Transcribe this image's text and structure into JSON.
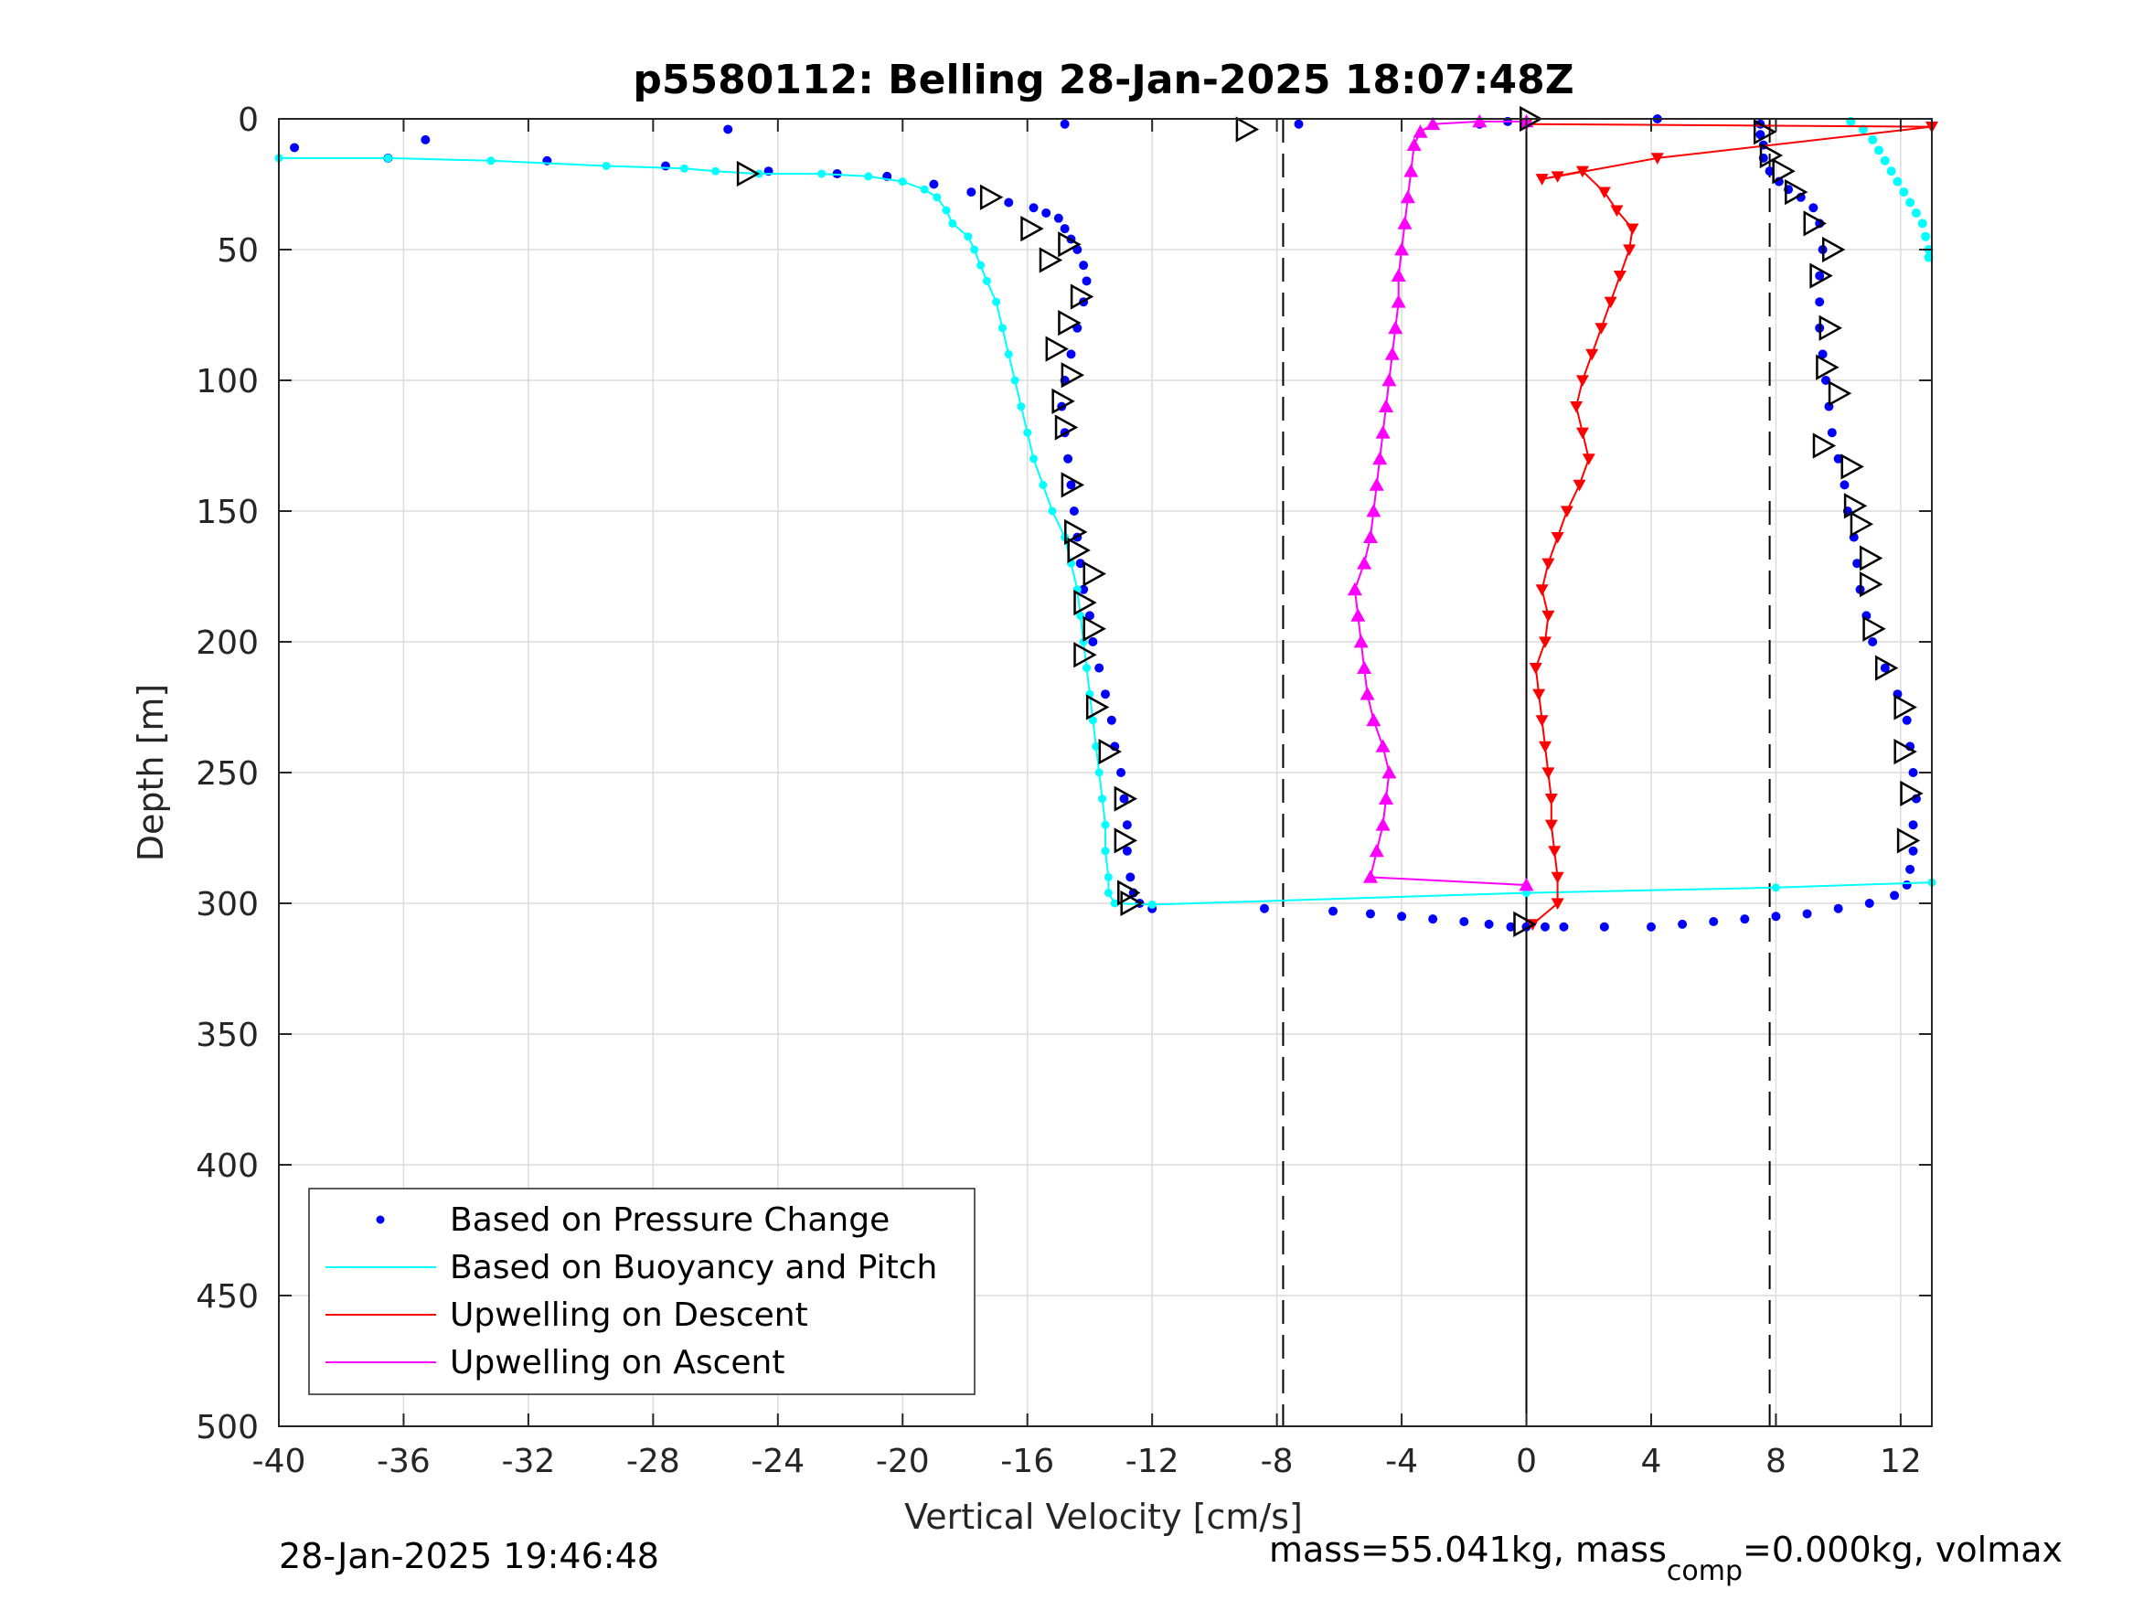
{
  "chart_data": {
    "type": "scatter",
    "title": "p5580112: Belling 28-Jan-2025 18:07:48Z",
    "xlabel": "Vertical Velocity [cm/s]",
    "ylabel": "Depth [m]",
    "xlim": [
      -40,
      13
    ],
    "ylim": [
      0,
      500
    ],
    "y_reversed": true,
    "grid": true,
    "x_ticks": [
      -40,
      -36,
      -32,
      -28,
      -24,
      -20,
      -16,
      -12,
      -8,
      -4,
      0,
      4,
      8,
      12
    ],
    "x_tick_labels": [
      "-40",
      "-36",
      "-32",
      "-28",
      "-24",
      "-20",
      "-16",
      "-12",
      "-8",
      "-4",
      "0",
      "4",
      "8",
      "12"
    ],
    "y_ticks": [
      0,
      50,
      100,
      150,
      200,
      250,
      300,
      350,
      400,
      450,
      500
    ],
    "y_tick_labels": [
      "0",
      "50",
      "100",
      "150",
      "200",
      "250",
      "300",
      "350",
      "400",
      "450",
      "500"
    ],
    "legend_position": "bottom-left",
    "reference_lines": {
      "dashed_x": [
        -7.8,
        7.8
      ],
      "solid_x": [
        0
      ]
    },
    "series": [
      {
        "name": "Based on Pressure Change",
        "style": "dots",
        "color": "#0000ff",
        "points": [
          [
            -39.5,
            11
          ],
          [
            -36.5,
            15
          ],
          [
            -35.3,
            8
          ],
          [
            -31.4,
            16
          ],
          [
            -27.6,
            18
          ],
          [
            -25.6,
            4
          ],
          [
            -24.3,
            20
          ],
          [
            -22.1,
            21
          ],
          [
            -20.5,
            22
          ],
          [
            -19.0,
            25
          ],
          [
            -17.8,
            28
          ],
          [
            -16.6,
            32
          ],
          [
            -15.8,
            34
          ],
          [
            -15.4,
            36
          ],
          [
            -15.0,
            38
          ],
          [
            -14.8,
            42
          ],
          [
            -14.6,
            46
          ],
          [
            -14.4,
            50
          ],
          [
            -14.2,
            56
          ],
          [
            -14.1,
            62
          ],
          [
            -14.2,
            70
          ],
          [
            -14.4,
            80
          ],
          [
            -14.6,
            90
          ],
          [
            -14.8,
            100
          ],
          [
            -14.9,
            110
          ],
          [
            -14.8,
            120
          ],
          [
            -14.7,
            130
          ],
          [
            -14.6,
            140
          ],
          [
            -14.5,
            150
          ],
          [
            -14.4,
            160
          ],
          [
            -14.3,
            170
          ],
          [
            -14.2,
            180
          ],
          [
            -14.0,
            190
          ],
          [
            -13.9,
            200
          ],
          [
            -13.7,
            210
          ],
          [
            -13.5,
            220
          ],
          [
            -13.3,
            230
          ],
          [
            -13.2,
            240
          ],
          [
            -13.0,
            250
          ],
          [
            -12.9,
            260
          ],
          [
            -12.8,
            270
          ],
          [
            -12.8,
            280
          ],
          [
            -12.7,
            290
          ],
          [
            -12.6,
            296
          ],
          [
            -12.4,
            300
          ],
          [
            -12.0,
            302
          ],
          [
            -8.4,
            302
          ],
          [
            -6.2,
            303
          ],
          [
            -5.0,
            304
          ],
          [
            -4.0,
            305
          ],
          [
            -3.0,
            306
          ],
          [
            -2.0,
            307
          ],
          [
            -1.2,
            308
          ],
          [
            -0.5,
            309
          ],
          [
            0.0,
            309
          ],
          [
            0.6,
            309
          ],
          [
            1.2,
            309
          ],
          [
            2.5,
            309
          ],
          [
            4.0,
            309
          ],
          [
            5.0,
            308
          ],
          [
            6.0,
            307
          ],
          [
            7.0,
            306
          ],
          [
            8.0,
            305
          ],
          [
            9.0,
            304
          ],
          [
            10.0,
            302
          ],
          [
            11.0,
            300
          ],
          [
            11.8,
            297
          ],
          [
            12.2,
            293
          ],
          [
            12.3,
            287
          ],
          [
            12.4,
            280
          ],
          [
            12.4,
            270
          ],
          [
            12.5,
            260
          ],
          [
            12.4,
            250
          ],
          [
            12.3,
            240
          ],
          [
            12.2,
            230
          ],
          [
            11.9,
            220
          ],
          [
            11.5,
            210
          ],
          [
            11.1,
            200
          ],
          [
            10.9,
            190
          ],
          [
            10.7,
            180
          ],
          [
            10.6,
            170
          ],
          [
            10.5,
            160
          ],
          [
            10.3,
            150
          ],
          [
            10.2,
            140
          ],
          [
            10.0,
            130
          ],
          [
            9.8,
            120
          ],
          [
            9.7,
            110
          ],
          [
            9.6,
            100
          ],
          [
            9.5,
            90
          ],
          [
            9.4,
            80
          ],
          [
            9.4,
            70
          ],
          [
            9.4,
            60
          ],
          [
            9.5,
            50
          ],
          [
            9.4,
            40
          ],
          [
            9.2,
            34
          ],
          [
            8.8,
            30
          ],
          [
            8.4,
            27
          ],
          [
            8.1,
            24
          ],
          [
            7.8,
            20
          ],
          [
            7.6,
            15
          ],
          [
            7.6,
            10
          ],
          [
            7.5,
            6
          ],
          [
            7.5,
            2
          ],
          [
            4.2,
            0
          ],
          [
            -0.6,
            1
          ],
          [
            -1.5,
            2
          ],
          [
            -7.3,
            2
          ],
          [
            -14.8,
            2
          ]
        ]
      },
      {
        "name": "Based on Buoyancy and Pitch",
        "style": "line-dots",
        "color": "#00ffff",
        "points": [
          [
            -40,
            15
          ],
          [
            -36.5,
            15
          ],
          [
            -33.2,
            16
          ],
          [
            -29.5,
            18
          ],
          [
            -27.0,
            19
          ],
          [
            -26.0,
            20
          ],
          [
            -24.6,
            21
          ],
          [
            -22.6,
            21
          ],
          [
            -21.1,
            22
          ],
          [
            -20.0,
            24
          ],
          [
            -19.3,
            27
          ],
          [
            -18.9,
            30
          ],
          [
            -18.6,
            35
          ],
          [
            -18.4,
            40
          ],
          [
            -17.9,
            45
          ],
          [
            -17.7,
            50
          ],
          [
            -17.5,
            56
          ],
          [
            -17.3,
            62
          ],
          [
            -17.0,
            70
          ],
          [
            -16.8,
            80
          ],
          [
            -16.6,
            90
          ],
          [
            -16.4,
            100
          ],
          [
            -16.2,
            110
          ],
          [
            -16.0,
            120
          ],
          [
            -15.8,
            130
          ],
          [
            -15.5,
            140
          ],
          [
            -15.2,
            150
          ],
          [
            -14.8,
            160
          ],
          [
            -14.6,
            170
          ],
          [
            -14.4,
            180
          ],
          [
            -14.3,
            190
          ],
          [
            -14.2,
            200
          ],
          [
            -14.1,
            210
          ],
          [
            -14.0,
            220
          ],
          [
            -13.9,
            230
          ],
          [
            -13.8,
            240
          ],
          [
            -13.7,
            250
          ],
          [
            -13.6,
            260
          ],
          [
            -13.5,
            270
          ],
          [
            -13.5,
            280
          ],
          [
            -13.4,
            290
          ],
          [
            -13.4,
            296
          ],
          [
            -13.2,
            300
          ],
          [
            -12.0,
            300.5
          ],
          [
            0,
            296
          ],
          [
            8.0,
            294
          ],
          [
            13.0,
            292
          ]
        ],
        "surface_cluster": [
          [
            10.4,
            1
          ],
          [
            10.8,
            4
          ],
          [
            11.1,
            8
          ],
          [
            11.3,
            12
          ],
          [
            11.5,
            16
          ],
          [
            11.7,
            20
          ],
          [
            11.9,
            24
          ],
          [
            12.1,
            28
          ],
          [
            12.3,
            32
          ],
          [
            12.5,
            36
          ],
          [
            12.7,
            40
          ],
          [
            12.8,
            45
          ],
          [
            12.9,
            50
          ],
          [
            12.9,
            53
          ]
        ]
      },
      {
        "name": "Upwelling on Descent",
        "style": "line-triangle-down",
        "color": "#ff0000",
        "points": [
          [
            0,
            2
          ],
          [
            13,
            3
          ],
          [
            4.2,
            15
          ],
          [
            1.0,
            22
          ],
          [
            0.5,
            23
          ],
          [
            1.8,
            20
          ],
          [
            2.5,
            28
          ],
          [
            2.9,
            35
          ],
          [
            3.4,
            42
          ],
          [
            3.3,
            50
          ],
          [
            3.0,
            60
          ],
          [
            2.7,
            70
          ],
          [
            2.4,
            80
          ],
          [
            2.1,
            90
          ],
          [
            1.8,
            100
          ],
          [
            1.6,
            110
          ],
          [
            1.8,
            120
          ],
          [
            2.0,
            130
          ],
          [
            1.7,
            140
          ],
          [
            1.3,
            150
          ],
          [
            1.0,
            160
          ],
          [
            0.7,
            170
          ],
          [
            0.5,
            180
          ],
          [
            0.7,
            190
          ],
          [
            0.6,
            200
          ],
          [
            0.3,
            210
          ],
          [
            0.4,
            220
          ],
          [
            0.5,
            230
          ],
          [
            0.6,
            240
          ],
          [
            0.7,
            250
          ],
          [
            0.8,
            260
          ],
          [
            0.8,
            270
          ],
          [
            0.9,
            280
          ],
          [
            1.0,
            290
          ],
          [
            1.0,
            300
          ],
          [
            0.2,
            308
          ]
        ]
      },
      {
        "name": "Upwelling on Ascent",
        "style": "line-triangle-up",
        "color": "#ff00ff",
        "points": [
          [
            0,
            293
          ],
          [
            -5.0,
            290
          ],
          [
            -4.8,
            280
          ],
          [
            -4.6,
            270
          ],
          [
            -4.5,
            260
          ],
          [
            -4.4,
            250
          ],
          [
            -4.6,
            240
          ],
          [
            -4.9,
            230
          ],
          [
            -5.1,
            220
          ],
          [
            -5.2,
            210
          ],
          [
            -5.3,
            200
          ],
          [
            -5.4,
            190
          ],
          [
            -5.5,
            180
          ],
          [
            -5.2,
            170
          ],
          [
            -5.0,
            160
          ],
          [
            -4.9,
            150
          ],
          [
            -4.8,
            140
          ],
          [
            -4.7,
            130
          ],
          [
            -4.6,
            120
          ],
          [
            -4.5,
            110
          ],
          [
            -4.4,
            100
          ],
          [
            -4.3,
            90
          ],
          [
            -4.2,
            80
          ],
          [
            -4.1,
            70
          ],
          [
            -4.1,
            60
          ],
          [
            -4.0,
            50
          ],
          [
            -3.9,
            40
          ],
          [
            -3.8,
            30
          ],
          [
            -3.7,
            20
          ],
          [
            -3.6,
            10
          ],
          [
            -3.4,
            5
          ],
          [
            -3.0,
            2
          ],
          [
            -1.5,
            1
          ],
          [
            0,
            1
          ]
        ]
      },
      {
        "name": "",
        "style": "open-triangle-right",
        "color": "#000000",
        "points": [
          [
            -9.0,
            4
          ],
          [
            0.1,
            0
          ],
          [
            -25.0,
            21
          ],
          [
            -17.2,
            30
          ],
          [
            -15.9,
            42
          ],
          [
            -15.3,
            54
          ],
          [
            -14.7,
            48
          ],
          [
            -14.3,
            68
          ],
          [
            -14.7,
            78
          ],
          [
            -15.1,
            88
          ],
          [
            -14.6,
            98
          ],
          [
            -14.9,
            108
          ],
          [
            -14.8,
            118
          ],
          [
            -14.6,
            140
          ],
          [
            -14.5,
            158
          ],
          [
            -14.4,
            165
          ],
          [
            -13.9,
            174
          ],
          [
            -14.2,
            185
          ],
          [
            -13.9,
            195
          ],
          [
            -14.2,
            205
          ],
          [
            -13.8,
            225
          ],
          [
            -13.4,
            242
          ],
          [
            -12.9,
            260
          ],
          [
            -12.9,
            276
          ],
          [
            -12.8,
            296
          ],
          [
            -12.7,
            300
          ],
          [
            -0.1,
            308
          ],
          [
            7.6,
            5
          ],
          [
            7.8,
            14
          ],
          [
            8.2,
            20
          ],
          [
            8.6,
            28
          ],
          [
            9.2,
            40
          ],
          [
            9.8,
            50
          ],
          [
            9.4,
            60
          ],
          [
            9.7,
            80
          ],
          [
            9.6,
            95
          ],
          [
            10.0,
            105
          ],
          [
            9.5,
            125
          ],
          [
            10.4,
            133
          ],
          [
            10.5,
            148
          ],
          [
            10.7,
            155
          ],
          [
            11.0,
            168
          ],
          [
            11.0,
            178
          ],
          [
            11.1,
            195
          ],
          [
            11.5,
            210
          ],
          [
            12.1,
            225
          ],
          [
            12.1,
            242
          ],
          [
            12.3,
            258
          ],
          [
            12.2,
            276
          ]
        ]
      }
    ],
    "legend": [
      "Based on Pressure Change",
      "Based on Buoyancy and Pitch",
      "Upwelling on Descent",
      "Upwelling on Ascent"
    ]
  },
  "footer": {
    "timestamp": "28-Jan-2025 19:46:48",
    "mass_text_a": "mass=55.041kg, mass",
    "mass_sub": "comp",
    "mass_text_b": "=0.000kg, volmax"
  },
  "colors": {
    "pressure": "#0000ff",
    "buoyancy": "#00ffff",
    "descent": "#ff0000",
    "ascent": "#ff00ff",
    "markers": "#000000"
  }
}
